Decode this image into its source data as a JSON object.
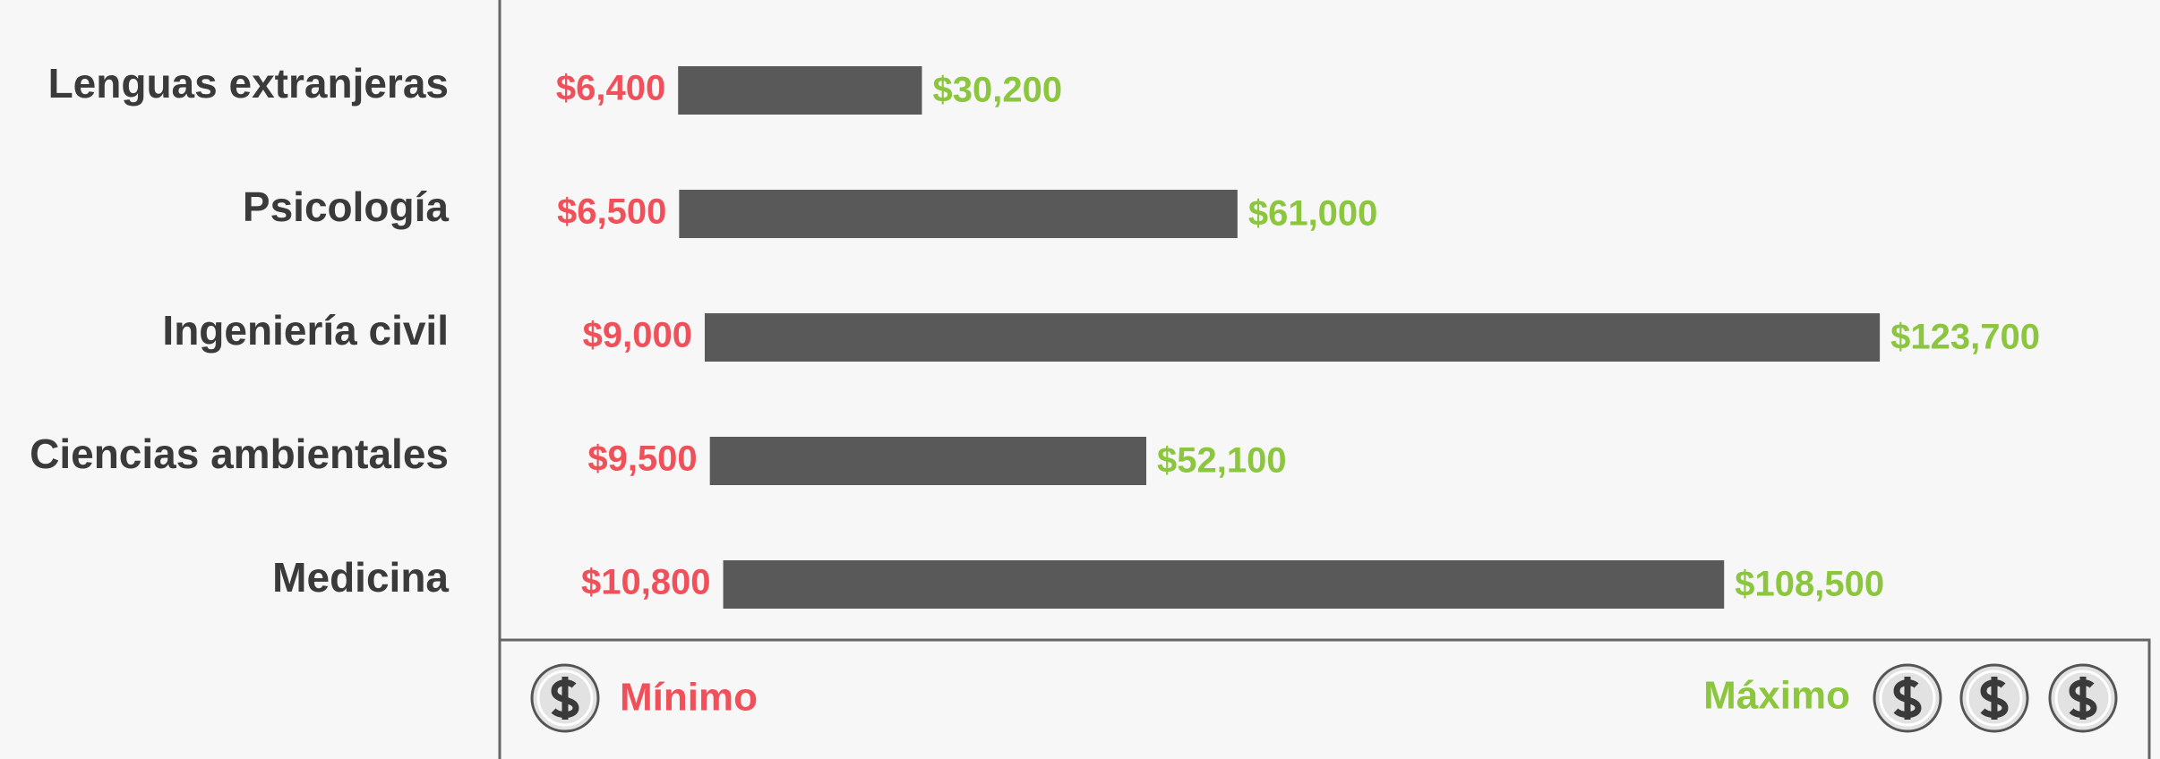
{
  "chart_data": {
    "type": "range_bar",
    "categories": [
      "Lenguas extranjeras",
      "Psicología",
      "Ingeniería civil",
      "Ciencias ambientales",
      "Medicina"
    ],
    "series": [
      {
        "name": "Mínimo",
        "color": "#f0505a",
        "values": [
          6400,
          6500,
          9000,
          9500,
          10800
        ],
        "value_labels": [
          "$6,400",
          "$6,500",
          "$9,000",
          "$9,500",
          "$10,800"
        ]
      },
      {
        "name": "Máximo",
        "color": "#8cc63f",
        "values": [
          30200,
          61000,
          123700,
          52100,
          108500
        ],
        "value_labels": [
          "$30,200",
          "$61,000",
          "$123,700",
          "$52,100",
          "$108,500"
        ]
      }
    ],
    "bar_color": "#595959",
    "xlim": [
      0,
      150000
    ]
  }
}
